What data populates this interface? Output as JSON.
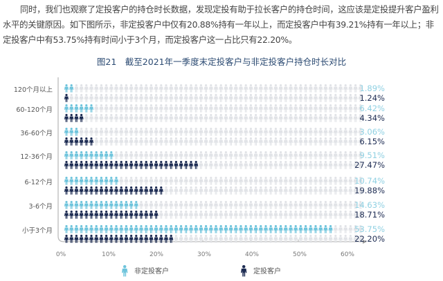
{
  "paragraph": "同时，我们也观察了定投客户的持仓时长数据，发现定投有助于拉长客户的持仓时间，这应该是定投提升客户盈利水平的关键原因。如下图所示，非定投客户中仅有20.88%持有一年以上，而定投客户中有39.21%持有一年以上；非定投客户中有53.75%持有时间小于3个月，而定投客户这一占比只有22.20%。",
  "chart_data": {
    "type": "bar",
    "title": "图21　截至2021年一季度末定投客户与非定投客户持仓时长对比",
    "categories": [
      "120个月以上",
      "60-120个月",
      "36-60个月",
      "12-36个月",
      "6-12个月",
      "3-6个月",
      "小于3个月"
    ],
    "series": [
      {
        "name": "非定投客户",
        "values": [
          1.89,
          6.42,
          3.06,
          9.51,
          10.74,
          14.63,
          53.75
        ],
        "labels": [
          "1.89%",
          "6.42%",
          "3.06%",
          "9.51%",
          "10.74%",
          "14.63%",
          "53.75%"
        ],
        "color": "#6ec4dc"
      },
      {
        "name": "定投客户",
        "values": [
          1.24,
          4.34,
          6.15,
          27.47,
          19.88,
          18.71,
          22.2
        ],
        "labels": [
          "1.24%",
          "4.34%",
          "6.15%",
          "27.47%",
          "19.88%",
          "18.71%",
          "22.20%"
        ],
        "color": "#1c2b52"
      }
    ],
    "xticks": [
      "0%",
      "10%",
      "20%",
      "30%",
      "40%",
      "50%",
      "60%"
    ],
    "xlim": [
      0,
      60
    ],
    "unit_icon": "person-icon",
    "background_icon_color": "#e1e3e7",
    "legend": "bottom",
    "grid": false
  }
}
